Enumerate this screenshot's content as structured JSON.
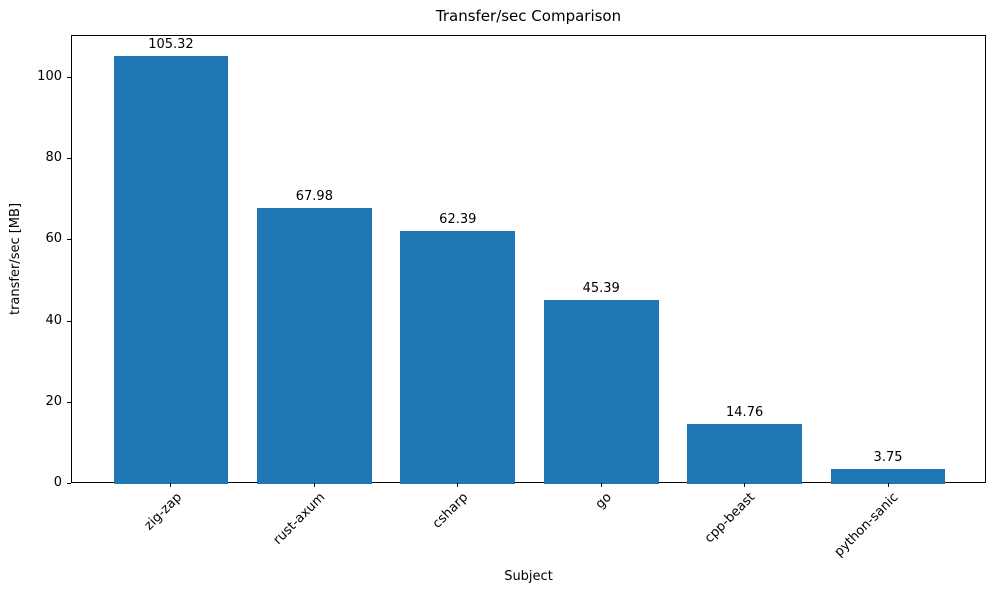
{
  "chart_data": {
    "type": "bar",
    "title": "Transfer/sec Comparison",
    "xlabel": "Subject",
    "ylabel": "transfer/sec [MB]",
    "categories": [
      "zig-zap",
      "rust-axum",
      "csharp",
      "go",
      "cpp-beast",
      "python-sanic"
    ],
    "values": [
      105.32,
      67.98,
      62.39,
      45.39,
      14.76,
      3.75
    ],
    "value_labels": [
      "105.32",
      "67.98",
      "62.39",
      "45.39",
      "14.76",
      "3.75"
    ],
    "series_name": "transfer/sec",
    "yticks": [
      0,
      20,
      40,
      60,
      80,
      100
    ],
    "ylim": [
      0,
      110.3
    ],
    "xlim_categories": [
      -0.69,
      5.69
    ],
    "bar_width_fraction": 0.8,
    "bar_color": "#1f77b4",
    "axis_color": "#000000",
    "background_color": "#ffffff",
    "grid": false,
    "legend": "none"
  }
}
